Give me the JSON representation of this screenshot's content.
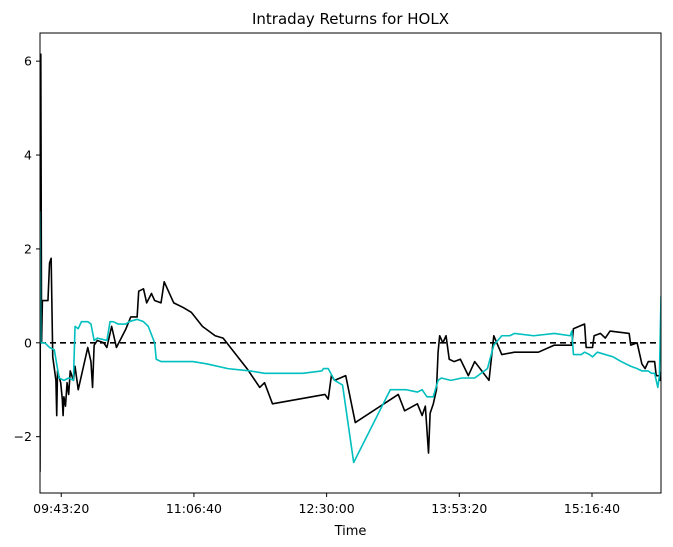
{
  "chart_data": {
    "type": "line",
    "title": "Intraday Returns for HOLX",
    "xlabel": "Time",
    "ylabel": "",
    "x_type": "time",
    "x_ticks": [
      "09:43:20",
      "11:06:40",
      "12:30:00",
      "13:53:20",
      "15:16:40"
    ],
    "y_ticks": [
      "6",
      "4",
      "2",
      "0",
      "−2"
    ],
    "xlim": [
      "09:30:00",
      "16:00:00"
    ],
    "ylim": [
      -3.2,
      6.6
    ],
    "grid": false,
    "reference_line": {
      "y": 0,
      "style": "dashed",
      "color": "#000000"
    },
    "series": [
      {
        "color": "#000000",
        "points": [
          [
            "09:30:00",
            -2.75
          ],
          [
            "09:30:30",
            6.15
          ],
          [
            "09:31:00",
            0.0
          ],
          [
            "09:31:30",
            0.9
          ],
          [
            "09:35:00",
            0.9
          ],
          [
            "09:36:00",
            1.7
          ],
          [
            "09:37:00",
            1.8
          ],
          [
            "09:38:00",
            -0.3
          ],
          [
            "09:40:00",
            -0.8
          ],
          [
            "09:40:30",
            -1.55
          ],
          [
            "09:41:00",
            -0.6
          ],
          [
            "09:43:00",
            -0.85
          ],
          [
            "09:44:00",
            -1.2
          ],
          [
            "09:44:30",
            -1.55
          ],
          [
            "09:45:00",
            -1.15
          ],
          [
            "09:46:00",
            -1.35
          ],
          [
            "09:47:00",
            -0.85
          ],
          [
            "09:48:00",
            -1.1
          ],
          [
            "09:49:00",
            -0.6
          ],
          [
            "09:51:00",
            -0.8
          ],
          [
            "09:52:00",
            -0.5
          ],
          [
            "09:54:00",
            -1.0
          ],
          [
            "09:56:00",
            -0.7
          ],
          [
            "10:00:00",
            -0.1
          ],
          [
            "10:02:00",
            -0.4
          ],
          [
            "10:03:00",
            -0.95
          ],
          [
            "10:04:00",
            -0.05
          ],
          [
            "10:06:00",
            0.05
          ],
          [
            "10:10:00",
            0.0
          ],
          [
            "10:12:00",
            -0.1
          ],
          [
            "10:15:00",
            0.35
          ],
          [
            "10:18:00",
            -0.1
          ],
          [
            "10:24:00",
            0.3
          ],
          [
            "10:27:00",
            0.55
          ],
          [
            "10:31:00",
            0.55
          ],
          [
            "10:32:00",
            1.1
          ],
          [
            "10:35:00",
            1.15
          ],
          [
            "10:37:00",
            0.85
          ],
          [
            "10:40:00",
            1.05
          ],
          [
            "10:42:00",
            0.9
          ],
          [
            "10:46:00",
            0.85
          ],
          [
            "10:48:00",
            1.3
          ],
          [
            "10:54:00",
            0.85
          ],
          [
            "11:00:00",
            0.75
          ],
          [
            "11:05:00",
            0.65
          ],
          [
            "11:12:00",
            0.35
          ],
          [
            "11:20:00",
            0.15
          ],
          [
            "11:25:00",
            0.1
          ],
          [
            "11:40:00",
            -0.55
          ],
          [
            "11:48:00",
            -0.95
          ],
          [
            "11:51:00",
            -0.85
          ],
          [
            "11:56:00",
            -1.3
          ],
          [
            "12:29:00",
            -1.1
          ],
          [
            "12:31:00",
            -1.2
          ],
          [
            "12:33:00",
            -0.7
          ],
          [
            "12:35:00",
            -0.8
          ],
          [
            "12:42:00",
            -0.7
          ],
          [
            "12:48:00",
            -1.7
          ],
          [
            "13:15:00",
            -1.1
          ],
          [
            "13:19:00",
            -1.45
          ],
          [
            "13:27:00",
            -1.3
          ],
          [
            "13:30:00",
            -1.55
          ],
          [
            "13:32:00",
            -1.35
          ],
          [
            "13:34:00",
            -2.35
          ],
          [
            "13:35:00",
            -1.5
          ],
          [
            "13:37:00",
            -1.3
          ],
          [
            "13:39:00",
            -1.0
          ],
          [
            "13:40:00",
            -0.2
          ],
          [
            "13:41:00",
            0.15
          ],
          [
            "13:43:00",
            0.0
          ],
          [
            "13:45:00",
            0.15
          ],
          [
            "13:47:00",
            -0.35
          ],
          [
            "13:50:00",
            -0.4
          ],
          [
            "13:54:00",
            -0.35
          ],
          [
            "13:59:00",
            -0.7
          ],
          [
            "14:03:00",
            -0.4
          ],
          [
            "14:12:00",
            -0.8
          ],
          [
            "14:15:00",
            0.15
          ],
          [
            "14:20:00",
            -0.25
          ],
          [
            "14:28:00",
            -0.2
          ],
          [
            "14:43:00",
            -0.2
          ],
          [
            "14:53:00",
            -0.05
          ],
          [
            "15:04:00",
            -0.05
          ],
          [
            "15:05:00",
            0.3
          ],
          [
            "15:12:00",
            0.4
          ],
          [
            "15:13:00",
            -0.1
          ],
          [
            "15:17:00",
            -0.1
          ],
          [
            "15:18:00",
            0.15
          ],
          [
            "15:22:00",
            0.2
          ],
          [
            "15:25:00",
            0.1
          ],
          [
            "15:28:00",
            0.25
          ],
          [
            "15:40:00",
            0.2
          ],
          [
            "15:41:00",
            -0.05
          ],
          [
            "15:45:00",
            0.0
          ],
          [
            "15:48:00",
            -0.45
          ],
          [
            "15:50:00",
            -0.55
          ],
          [
            "15:52:00",
            -0.4
          ],
          [
            "15:56:00",
            -0.4
          ],
          [
            "15:57:00",
            -0.7
          ],
          [
            "15:59:00",
            -0.7
          ],
          [
            "15:59:30",
            -0.8
          ],
          [
            "16:00:00",
            -0.6
          ]
        ]
      },
      {
        "color": "#00bfbf",
        "points": [
          [
            "09:30:00",
            2.8
          ],
          [
            "09:30:30",
            0.0
          ],
          [
            "09:33:00",
            0.0
          ],
          [
            "09:36:00",
            -0.1
          ],
          [
            "09:39:00",
            -0.15
          ],
          [
            "09:42:00",
            -0.75
          ],
          [
            "09:45:00",
            -0.8
          ],
          [
            "09:48:00",
            -0.75
          ],
          [
            "09:51:00",
            -0.8
          ],
          [
            "09:52:00",
            0.35
          ],
          [
            "09:54:00",
            0.3
          ],
          [
            "09:56:00",
            0.45
          ],
          [
            "10:00:00",
            0.45
          ],
          [
            "10:02:00",
            0.4
          ],
          [
            "10:04:00",
            0.05
          ],
          [
            "10:06:00",
            0.1
          ],
          [
            "10:12:00",
            0.05
          ],
          [
            "10:14:00",
            0.45
          ],
          [
            "10:16:00",
            0.45
          ],
          [
            "10:19:00",
            0.4
          ],
          [
            "10:24:00",
            0.4
          ],
          [
            "10:26:00",
            0.45
          ],
          [
            "10:31:00",
            0.5
          ],
          [
            "10:35:00",
            0.45
          ],
          [
            "10:38:00",
            0.35
          ],
          [
            "10:42:00",
            0.0
          ],
          [
            "10:43:00",
            -0.35
          ],
          [
            "10:46:00",
            -0.4
          ],
          [
            "10:55:00",
            -0.4
          ],
          [
            "11:06:00",
            -0.4
          ],
          [
            "11:15:00",
            -0.45
          ],
          [
            "11:28:00",
            -0.55
          ],
          [
            "11:42:00",
            -0.6
          ],
          [
            "11:51:00",
            -0.65
          ],
          [
            "12:15:00",
            -0.65
          ],
          [
            "12:27:00",
            -0.6
          ],
          [
            "12:28:00",
            -0.55
          ],
          [
            "12:31:00",
            -0.55
          ],
          [
            "12:35:00",
            -0.8
          ],
          [
            "12:40:00",
            -0.9
          ],
          [
            "12:47:00",
            -2.55
          ],
          [
            "13:10:00",
            -1.0
          ],
          [
            "13:20:00",
            -1.0
          ],
          [
            "13:27:00",
            -1.05
          ],
          [
            "13:30:00",
            -1.0
          ],
          [
            "13:33:00",
            -1.15
          ],
          [
            "13:37:00",
            -1.15
          ],
          [
            "13:40:00",
            -0.8
          ],
          [
            "13:42:00",
            -0.75
          ],
          [
            "13:48:00",
            -0.8
          ],
          [
            "13:55:00",
            -0.75
          ],
          [
            "14:03:00",
            -0.75
          ],
          [
            "14:11:00",
            -0.55
          ],
          [
            "14:15:00",
            -0.05
          ],
          [
            "14:20:00",
            0.15
          ],
          [
            "14:25:00",
            0.15
          ],
          [
            "14:28:00",
            0.2
          ],
          [
            "14:40:00",
            0.15
          ],
          [
            "14:53:00",
            0.2
          ],
          [
            "15:03:00",
            0.15
          ],
          [
            "15:04:00",
            0.25
          ],
          [
            "15:05:00",
            -0.25
          ],
          [
            "15:10:00",
            -0.25
          ],
          [
            "15:12:00",
            -0.2
          ],
          [
            "15:15:00",
            -0.25
          ],
          [
            "15:17:00",
            -0.3
          ],
          [
            "15:20:00",
            -0.2
          ],
          [
            "15:30:00",
            -0.3
          ],
          [
            "15:35:00",
            -0.4
          ],
          [
            "15:41:00",
            -0.5
          ],
          [
            "15:45:00",
            -0.55
          ],
          [
            "15:48:00",
            -0.6
          ],
          [
            "15:52:00",
            -0.6
          ],
          [
            "15:54:00",
            -0.65
          ],
          [
            "15:56:00",
            -0.65
          ],
          [
            "15:58:00",
            -0.95
          ],
          [
            "15:59:00",
            -0.7
          ],
          [
            "16:00:00",
            1.0
          ]
        ]
      }
    ]
  }
}
